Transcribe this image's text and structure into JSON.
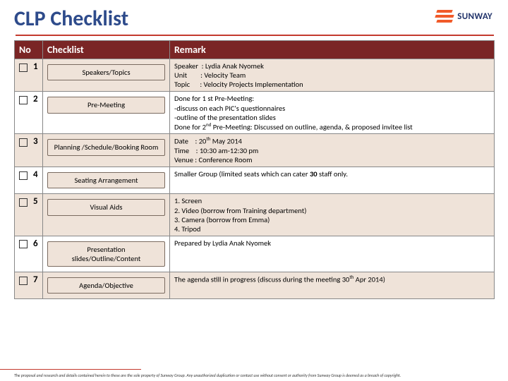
{
  "title": "CLP Checklist",
  "brand": {
    "name": "SUNWAY",
    "stripes": [
      "#f15a29",
      "#f15a29",
      "#f15a29"
    ],
    "text_color": "#22346b"
  },
  "accent_line": "#c43a2e",
  "table": {
    "headers": {
      "no": "No",
      "checklist": "Checklist",
      "remark": "Remark"
    },
    "header_bg": "#7a2525",
    "alt_bg": "#efe3d9",
    "rows": [
      {
        "no": "1",
        "chip": "Speakers/Topics",
        "remark_html": "Speaker&nbsp;&nbsp;: Lydia Anak Nyomek<br>Unit&nbsp;&nbsp;&nbsp;&nbsp;&nbsp;&nbsp;&nbsp;&nbsp;: Velocity Team<br>Topic&nbsp;&nbsp;&nbsp;&nbsp;&nbsp;&nbsp;: Velocity Projects Implementation"
      },
      {
        "no": "2",
        "chip": "Pre-Meeting",
        "remark_html": "Done for 1 st Pre-Meeting:<br>-discuss on each PIC's questionnaires<br>-outline of the presentation slides<br>Done for 2<span class=sup>nd</span> Pre-Meeting: Discussed on outline, agenda, &amp; proposed invitee list"
      },
      {
        "no": "3",
        "chip": "Planning /Schedule/Booking Room",
        "remark_html": "Date&nbsp;&nbsp;&nbsp;&nbsp;: 20<span class=sup>th</span> May 2014<br>Time&nbsp;&nbsp;&nbsp;&nbsp;: 10:30 am-12:30 pm<br>Venue&nbsp;: Conference Room"
      },
      {
        "no": "4",
        "chip": "Seating Arrangement",
        "remark_html": "Smaller Group (limited seats which can cater <b>30</b> staff only."
      },
      {
        "no": "5",
        "chip": "Visual Aids",
        "remark_html": "1. Screen<br>2. Video (borrow from Training department)<br>3. Camera (borrow from Emma)<br>4. Tripod"
      },
      {
        "no": "6",
        "chip": "Presentation slides/Outline/Content",
        "remark_html": "Prepared by Lydia Anak Nyomek"
      },
      {
        "no": "7",
        "chip": "Agenda/Objective",
        "remark_html": "The agenda still in progress (discuss during the meeting 30<span class=sup>th</span> Apr 2014)"
      }
    ]
  },
  "footer": "The proposal and research and details contained herein to these are the sole property of Sunway Group. Any unauthorized duplication or contact use without consent or authority from Sunway Group is deemed as a breach of copyright."
}
